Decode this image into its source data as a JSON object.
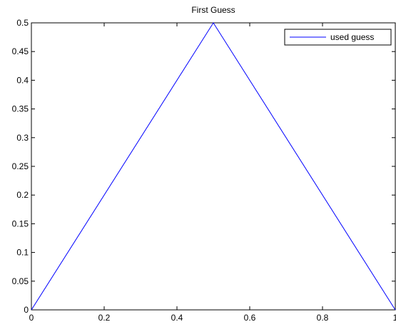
{
  "chart_data": {
    "type": "line",
    "title": "First Guess",
    "xlabel": "",
    "ylabel": "",
    "xlim": [
      0,
      1
    ],
    "ylim": [
      0,
      0.5
    ],
    "x_ticks": [
      "0",
      "0.2",
      "0.4",
      "0.6",
      "0.8",
      "1"
    ],
    "y_ticks": [
      "0",
      "0.05",
      "0.1",
      "0.15",
      "0.2",
      "0.25",
      "0.3",
      "0.35",
      "0.4",
      "0.45",
      "0.5"
    ],
    "grid": false,
    "legend_position": "top-right",
    "series": [
      {
        "name": "used guess",
        "color": "#0000ff",
        "x": [
          0,
          0.5,
          1
        ],
        "y": [
          0,
          0.5,
          0
        ]
      }
    ]
  }
}
